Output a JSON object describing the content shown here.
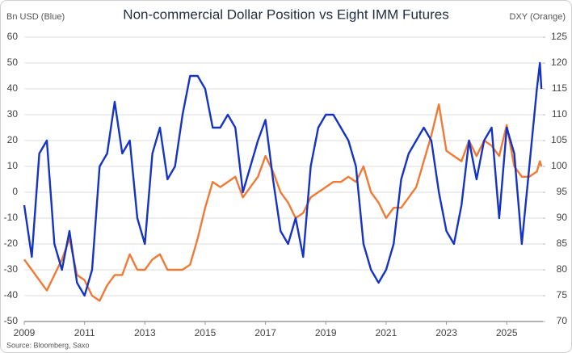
{
  "chart_data": {
    "type": "line",
    "title": "Non-commercial Dollar Position vs Eight IMM Futures",
    "y_label": "Bn USD (Blue)",
    "y2_label": "DXY (Orange)",
    "source": "Source: Bloomberg, Saxo",
    "x": [
      2009.0,
      2009.25,
      2009.5,
      2009.75,
      2010.0,
      2010.25,
      2010.5,
      2010.75,
      2011.0,
      2011.25,
      2011.5,
      2011.75,
      2012.0,
      2012.25,
      2012.5,
      2012.75,
      2013.0,
      2013.25,
      2013.5,
      2013.75,
      2014.0,
      2014.25,
      2014.5,
      2014.75,
      2015.0,
      2015.25,
      2015.5,
      2015.75,
      2016.0,
      2016.25,
      2016.5,
      2016.75,
      2017.0,
      2017.25,
      2017.5,
      2017.75,
      2018.0,
      2018.25,
      2018.5,
      2018.75,
      2019.0,
      2019.25,
      2019.5,
      2019.75,
      2020.0,
      2020.25,
      2020.5,
      2020.75,
      2021.0,
      2021.25,
      2021.5,
      2021.75,
      2022.0,
      2022.25,
      2022.5,
      2022.75,
      2023.0,
      2023.25,
      2023.5,
      2023.75,
      2024.0,
      2024.25,
      2024.5,
      2024.75,
      2025.0,
      2025.25,
      2025.5,
      2025.75,
      2026.0,
      2026.1,
      2026.15
    ],
    "series": [
      {
        "name": "Bn USD",
        "color": "#1533c4",
        "axis": "y",
        "values": [
          -5,
          -25,
          15,
          20,
          -20,
          -30,
          -15,
          -35,
          -40,
          -30,
          10,
          15,
          35,
          15,
          20,
          -10,
          -20,
          15,
          25,
          5,
          10,
          30,
          45,
          45,
          40,
          25,
          25,
          30,
          25,
          0,
          10,
          20,
          28,
          5,
          -15,
          -20,
          -10,
          -25,
          10,
          25,
          30,
          30,
          25,
          20,
          10,
          -20,
          -30,
          -35,
          -30,
          -20,
          5,
          15,
          20,
          25,
          20,
          0,
          -15,
          -20,
          -5,
          20,
          5,
          20,
          25,
          -10,
          25,
          15,
          -20,
          10,
          40,
          50,
          40
        ]
      },
      {
        "name": "DXY",
        "color": "#f07a35",
        "axis": "y2",
        "values": [
          82,
          80,
          78,
          76,
          79,
          82,
          86,
          79,
          78,
          75,
          74,
          77,
          79,
          79,
          83,
          80,
          80,
          82,
          83,
          80,
          80,
          80,
          81,
          86,
          92,
          97,
          96,
          97,
          98,
          94,
          96,
          98,
          102,
          99,
          95,
          93,
          90,
          91,
          94,
          95,
          96,
          97,
          97,
          98,
          97,
          100,
          95,
          93,
          90,
          92,
          92,
          94,
          96,
          101,
          106,
          112,
          103,
          102,
          101,
          105,
          102,
          105,
          104,
          102,
          108,
          100,
          98,
          98,
          99,
          101,
          100
        ]
      }
    ],
    "xlim": [
      2009,
      2026.2
    ],
    "xticks": [
      2009,
      2011,
      2013,
      2015,
      2017,
      2019,
      2021,
      2023,
      2025
    ],
    "ylim": [
      -50,
      60
    ],
    "yticks": [
      -50,
      -40,
      -30,
      -20,
      -10,
      0,
      10,
      20,
      30,
      40,
      50,
      60
    ],
    "y2lim": [
      70,
      125
    ],
    "y2ticks": [
      70,
      75,
      80,
      85,
      90,
      95,
      100,
      105,
      110,
      115,
      120,
      125
    ],
    "grid": true
  }
}
